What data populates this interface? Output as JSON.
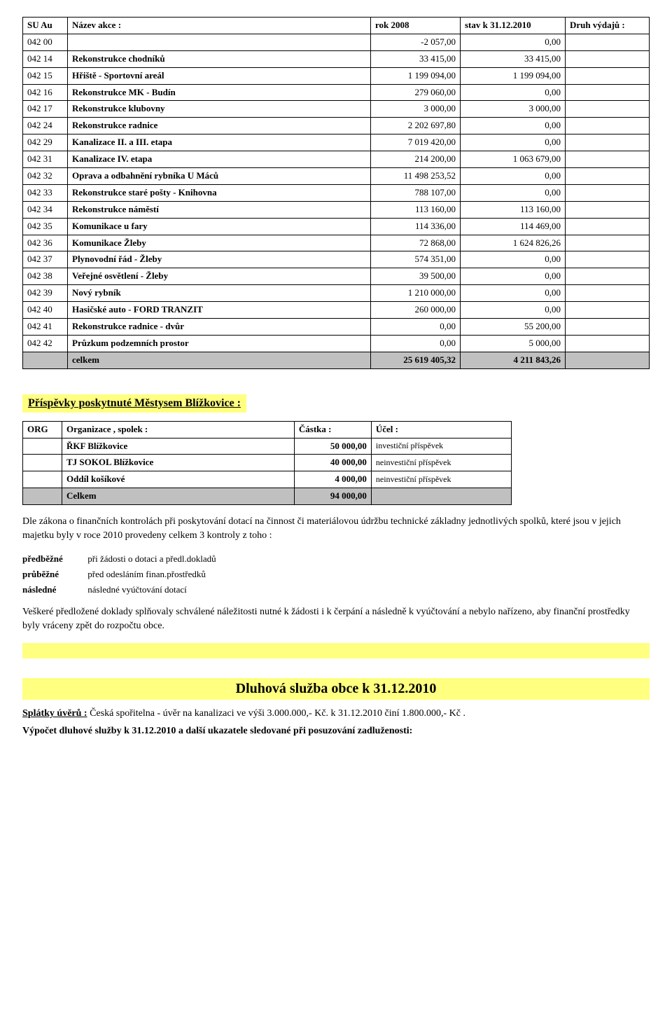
{
  "table1": {
    "headers": [
      "SU Au",
      "Název akce :",
      "rok 2008",
      "stav k 31.12.2010",
      "Druh výdajů :"
    ],
    "widths": [
      "60px",
      "auto",
      "120px",
      "140px",
      "120px"
    ],
    "rows": [
      {
        "c0": "042 00",
        "c1": "",
        "c2": "-2 057,00",
        "c3": "0,00",
        "c4": ""
      },
      {
        "c0": "042 14",
        "c1": "Rekonstrukce chodníků",
        "c2": "33 415,00",
        "c3": "33 415,00",
        "c4": ""
      },
      {
        "c0": "042 15",
        "c1": "Hřiště - Sportovní areál",
        "c2": "1 199 094,00",
        "c3": "1 199 094,00",
        "c4": ""
      },
      {
        "c0": "042 16",
        "c1": "Rekonstrukce MK - Budín",
        "c2": "279 060,00",
        "c3": "0,00",
        "c4": ""
      },
      {
        "c0": "042 17",
        "c1": "Rekonstrukce klubovny",
        "c2": "3 000,00",
        "c3": "3 000,00",
        "c4": ""
      },
      {
        "c0": "042 24",
        "c1": "Rekonstrukce radnice",
        "c2": "2 202 697,80",
        "c3": "0,00",
        "c4": ""
      },
      {
        "c0": "042 29",
        "c1": "Kanalizace II. a III. etapa",
        "c2": "7 019 420,00",
        "c3": "0,00",
        "c4": ""
      },
      {
        "c0": "042 31",
        "c1": "Kanalizace IV. etapa",
        "c2": "214 200,00",
        "c3": "1 063 679,00",
        "c4": ""
      },
      {
        "c0": "042 32",
        "c1": "Oprava a odbahnění rybníka U Máců",
        "c2": "11 498 253,52",
        "c3": "0,00",
        "c4": ""
      },
      {
        "c0": "042 33",
        "c1": "Rekonstrukce staré pošty - Knihovna",
        "c2": "788 107,00",
        "c3": "0,00",
        "c4": ""
      },
      {
        "c0": "042 34",
        "c1": "Rekonstrukce náměstí",
        "c2": "113 160,00",
        "c3": "113 160,00",
        "c4": ""
      },
      {
        "c0": "042 35",
        "c1": "Komunikace u fary",
        "c2": "114 336,00",
        "c3": "114 469,00",
        "c4": ""
      },
      {
        "c0": "042 36",
        "c1": "Komunikace Žleby",
        "c2": "72 868,00",
        "c3": "1 624 826,26",
        "c4": ""
      },
      {
        "c0": "042 37",
        "c1": "Plynovodní řád - Žleby",
        "c2": "574 351,00",
        "c3": "0,00",
        "c4": ""
      },
      {
        "c0": "042 38",
        "c1": "Veřejné osvětlení - Žleby",
        "c2": "39 500,00",
        "c3": "0,00",
        "c4": ""
      },
      {
        "c0": "042 39",
        "c1": "Nový rybník",
        "c2": "1 210 000,00",
        "c3": "0,00",
        "c4": ""
      },
      {
        "c0": "042 40",
        "c1": "Hasičské auto - FORD TRANZIT",
        "c2": "260 000,00",
        "c3": "0,00",
        "c4": ""
      },
      {
        "c0": "042 41",
        "c1": "Rekonstrukce radnice - dvůr",
        "c2": "0,00",
        "c3": "55 200,00",
        "c4": ""
      },
      {
        "c0": "042 42",
        "c1": "Průzkum podzemních prostor",
        "c2": "0,00",
        "c3": "5 000,00",
        "c4": ""
      }
    ],
    "total": {
      "label": "celkem",
      "c2": "25 619 405,32",
      "c3": "4 211 843,26"
    }
  },
  "contrib": {
    "title": "Příspěvky  poskytnuté Městysem Blížkovice :",
    "headers": [
      "ORG",
      "Organizace , spolek :",
      "Částka :",
      "Účel  :"
    ],
    "widths": [
      "60px",
      "auto",
      "120px",
      "210px"
    ],
    "rows": [
      {
        "org": "",
        "name": "ŘKF Blížkovice",
        "amt": "50 000,00",
        "purpose": "investiční příspěvek"
      },
      {
        "org": "",
        "name": "TJ SOKOL Blížkovice",
        "amt": "40 000,00",
        "purpose": "neinvestiční příspěvek"
      },
      {
        "org": "",
        "name": "Oddíl košíkové",
        "amt": "4 000,00",
        "purpose": "neinvestiční příspěvek"
      }
    ],
    "total": {
      "label": "Celkem",
      "amt": "94 000,00"
    }
  },
  "text": {
    "p1": "Dle zákona o finančních kontrolách při poskytování dotací na činnost či materiálovou údržbu technické základny jednotlivých spolků, které jsou v jejich majetku byly v roce 2010 provedeny celkem 3 kontroly z toho :",
    "l1a": "předběžné",
    "l1b": "při žádosti o dotaci a předl.dokladů",
    "l2a": "průběžné",
    "l2b": "před odesláním finan.přostředků",
    "l3a": "následné",
    "l3b": "následné vyúčtování dotací",
    "p2": "Veškeré  předložené doklady splňovaly schválené náležitosti nutné k žádosti i k čerpání a následně k vyúčtování a nebylo  nařízeno, aby finanční prostředky byly vráceny zpět do rozpočtu obce."
  },
  "debt": {
    "title": "Dluhová služba obce k 31.12.2010",
    "line1_u": "Splátky úvěrů :",
    "line1_rest": " Česká spořitelna - úvěr na kanalizaci ve výši 3.000.000,- Kč.  k 31.12.2010 činí 1.800.000,- Kč .",
    "line2": "Výpočet dluhové služby  k 31.12.2010 a  další ukazatele sledované při posuzování zadluženosti:"
  }
}
